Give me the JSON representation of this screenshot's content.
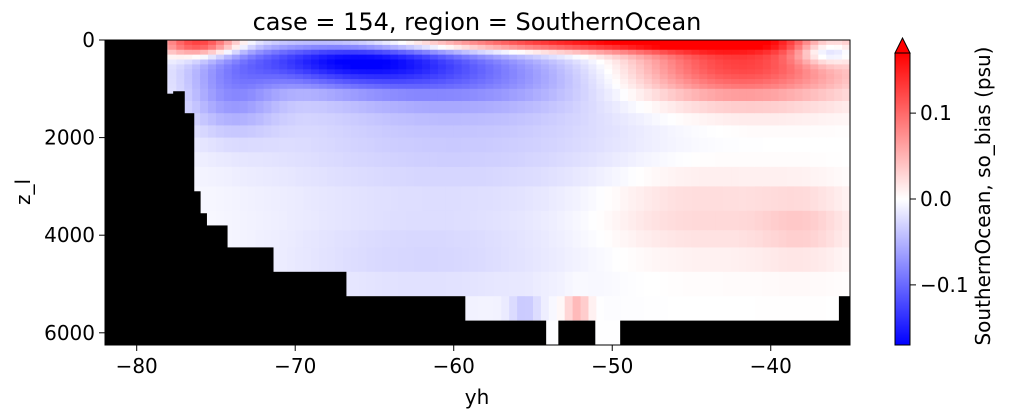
{
  "chart_data": {
    "type": "heatmap",
    "title": "case = 154, region = SouthernOcean",
    "xlabel": "yh",
    "ylabel": "z_l",
    "xlim": [
      -82,
      -35
    ],
    "ylim": [
      6250,
      0
    ],
    "xticks": [
      -80,
      -70,
      -60,
      -50,
      -40
    ],
    "xtick_labels": [
      "−80",
      "−70",
      "−60",
      "−50",
      "−40"
    ],
    "yticks": [
      0,
      2000,
      4000,
      6000
    ],
    "ytick_labels": [
      "0",
      "2000",
      "4000",
      "6000"
    ],
    "colorbar": {
      "label": "SouthernOcean, so_bias (psu)",
      "cmap": "bwr",
      "vmin": -0.17,
      "vmax": 0.17,
      "extend": "max",
      "ticks": [
        -0.1,
        0.0,
        0.1
      ],
      "tick_labels": [
        "−0.1",
        "0.0",
        "0.1"
      ]
    },
    "mask_color": "#000000",
    "seafloor_depth_steps": [
      {
        "x_from": -82,
        "x_to": -78.1,
        "depth": 0
      },
      {
        "x_from": -78.1,
        "x_to": -77.7,
        "depth": 1100
      },
      {
        "x_from": -77.7,
        "x_to": -77.0,
        "depth": 1050
      },
      {
        "x_from": -77.0,
        "x_to": -76.4,
        "depth": 1500
      },
      {
        "x_from": -76.4,
        "x_to": -76.0,
        "depth": 3100
      },
      {
        "x_from": -76.0,
        "x_to": -75.6,
        "depth": 3550
      },
      {
        "x_from": -75.6,
        "x_to": -74.3,
        "depth": 3800
      },
      {
        "x_from": -74.3,
        "x_to": -71.4,
        "depth": 4250
      },
      {
        "x_from": -71.4,
        "x_to": -66.8,
        "depth": 4750
      },
      {
        "x_from": -66.8,
        "x_to": -59.3,
        "depth": 5250
      },
      {
        "x_from": -59.3,
        "x_to": -54.2,
        "depth": 5750
      },
      {
        "x_from": -54.2,
        "x_to": -53.4,
        "depth": 6250
      },
      {
        "x_from": -53.4,
        "x_to": -51.1,
        "depth": 5750
      },
      {
        "x_from": -51.1,
        "x_to": -49.5,
        "depth": 6250
      },
      {
        "x_from": -49.5,
        "x_to": -35.7,
        "depth": 5750
      },
      {
        "x_from": -35.7,
        "x_to": -35,
        "depth": 5250
      }
    ],
    "bias_features": [
      {
        "kind": "positive",
        "x_center": -52,
        "x_width": 15,
        "z_center": 50,
        "z_width": 200,
        "amp": 0.16
      },
      {
        "kind": "positive",
        "x_center": -76,
        "x_width": 2.5,
        "z_center": 80,
        "z_width": 250,
        "amp": 0.14
      },
      {
        "kind": "positive",
        "x_center": -42,
        "x_width": 7,
        "z_center": 500,
        "z_width": 800,
        "amp": 0.13
      },
      {
        "kind": "negative",
        "x_center": -67,
        "x_width": 7,
        "z_center": 400,
        "z_width": 500,
        "amp": -0.13
      },
      {
        "kind": "negative",
        "x_center": -60,
        "x_width": 9,
        "z_center": 700,
        "z_width": 700,
        "amp": -0.07
      },
      {
        "kind": "negative",
        "x_center": -74,
        "x_width": 3,
        "z_center": 1100,
        "z_width": 800,
        "amp": -0.06
      },
      {
        "kind": "negative",
        "x_center": -36.5,
        "x_width": 2,
        "z_center": 200,
        "z_width": 300,
        "amp": -0.1
      },
      {
        "kind": "negative",
        "x_center": -60,
        "x_width": 14,
        "z_center": 2000,
        "z_width": 1500,
        "amp": -0.035
      },
      {
        "kind": "positive",
        "x_center": -45,
        "x_width": 6,
        "z_center": 3500,
        "z_width": 1000,
        "amp": 0.03
      },
      {
        "kind": "positive",
        "x_center": -38,
        "x_width": 3,
        "z_center": 3800,
        "z_width": 800,
        "amp": 0.03
      },
      {
        "kind": "negative",
        "x_center": -62,
        "x_width": 10,
        "z_center": 4500,
        "z_width": 1000,
        "amp": -0.025
      },
      {
        "kind": "negative",
        "x_center": -55.5,
        "x_width": 1,
        "z_center": 5500,
        "z_width": 300,
        "amp": -0.03
      },
      {
        "kind": "positive",
        "x_center": -52.2,
        "x_width": 0.8,
        "z_center": 5500,
        "z_width": 300,
        "amp": 0.05
      }
    ]
  },
  "colors": {
    "negative": "#0000ff",
    "neutral": "#ffffff",
    "positive": "#ff0000",
    "land_mask": "#000000"
  }
}
